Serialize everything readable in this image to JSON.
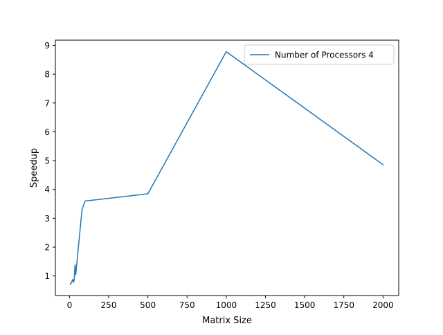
{
  "chart_data": {
    "type": "line",
    "title": "",
    "xlabel": "Matrix Size",
    "ylabel": "Speedup",
    "xlim": [
      -90,
      2100
    ],
    "ylim": [
      0.32,
      9.18
    ],
    "xticks": [
      0,
      250,
      500,
      750,
      1000,
      1250,
      1500,
      1750,
      2000
    ],
    "yticks": [
      1,
      2,
      3,
      4,
      5,
      6,
      7,
      8,
      9
    ],
    "grid": false,
    "legend_position": "top-right",
    "series": [
      {
        "name": "Number of Processors 4",
        "color": "#1f77b4",
        "x": [
          5,
          10,
          15,
          20,
          25,
          30,
          35,
          40,
          80,
          100,
          500,
          1000,
          2000
        ],
        "y": [
          0.7,
          0.75,
          0.8,
          0.88,
          0.78,
          0.85,
          1.38,
          1.05,
          3.3,
          3.6,
          3.85,
          8.78,
          4.86
        ]
      }
    ]
  }
}
